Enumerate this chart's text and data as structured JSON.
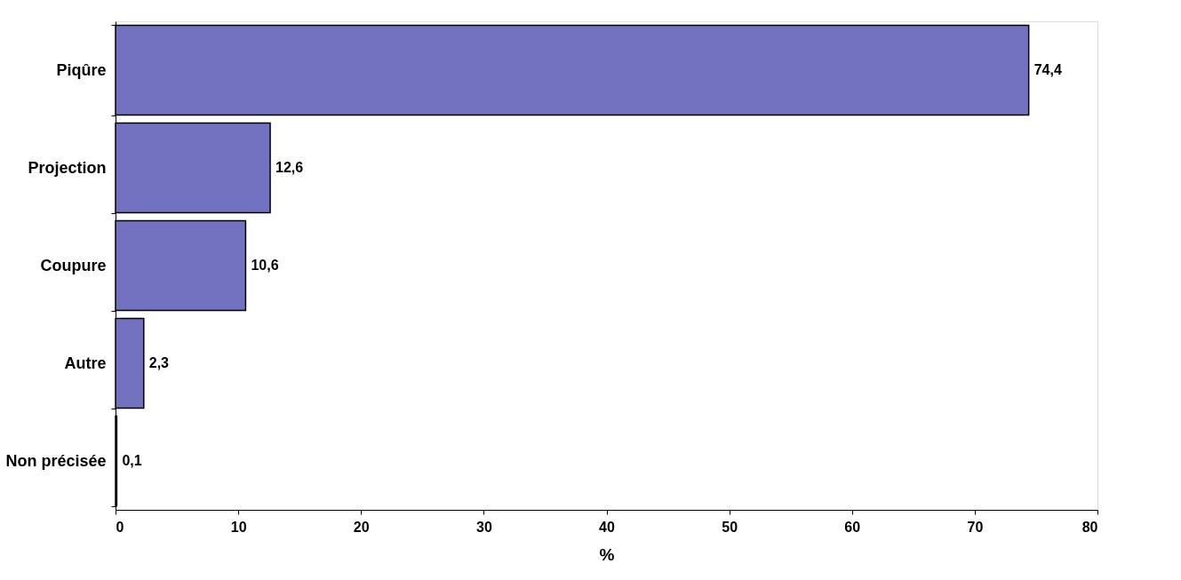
{
  "chart_data": {
    "type": "bar",
    "orientation": "horizontal",
    "xlabel": "%",
    "categories": [
      "Piqûre",
      "Projection",
      "Coupure",
      "Autre",
      "Non précisée"
    ],
    "values": [
      74.4,
      12.6,
      10.6,
      2.3,
      0.1
    ],
    "value_labels": [
      "74,4",
      "12,6",
      "10,6",
      "2,3",
      "0,1"
    ],
    "color": "#7272c0",
    "xlim": [
      0,
      80
    ],
    "xticks": [
      0,
      10,
      20,
      30,
      40,
      50,
      60,
      70,
      80
    ],
    "grid": false
  }
}
